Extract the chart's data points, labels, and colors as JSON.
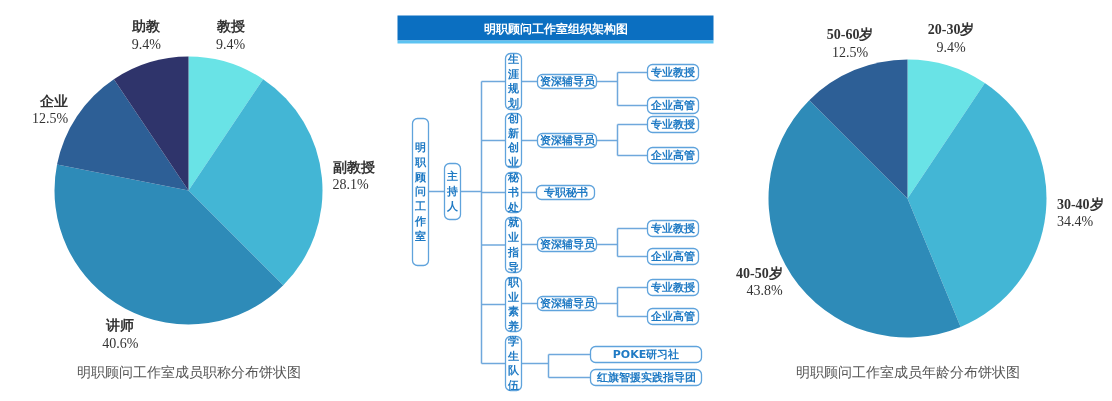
{
  "chart_data": [
    {
      "type": "pie",
      "title": "明职顾问工作室成员职称分布饼状图",
      "categories": [
        "教授",
        "副教授",
        "讲师",
        "企业",
        "助教"
      ],
      "values": [
        9.4,
        28.1,
        40.6,
        12.5,
        9.4
      ],
      "value_labels": [
        "9.4%",
        "28.1%",
        "40.6%",
        "12.5%",
        "9.4%"
      ],
      "colors": [
        "#69e3e6",
        "#43b6d5",
        "#2e8bb8",
        "#2d5f96",
        "#2f346b"
      ]
    },
    {
      "type": "other",
      "title": "明职顾问工作室组织架构图",
      "annotations": [
        "明职顾问工作室",
        "主持人",
        "生涯规划",
        "资深辅导员",
        "专业教授",
        "企业高管",
        "创新创业",
        "资深辅导员",
        "专业教授",
        "企业高管",
        "秘书处",
        "专职秘书",
        "就业指导",
        "资深辅导员",
        "专业教授",
        "企业高管",
        "职业素养",
        "资深辅导员",
        "专业教授",
        "企业高管",
        "学生队伍",
        "POKE研习社",
        "红旗智援实践指导团"
      ]
    },
    {
      "type": "pie",
      "title": "明职顾问工作室成员年龄分布饼状图",
      "categories": [
        "20-30岁",
        "30-40岁",
        "40-50岁",
        "50-60岁"
      ],
      "values": [
        9.4,
        34.4,
        43.8,
        12.5
      ],
      "value_labels": [
        "9.4%",
        "34.4%",
        "43.8%",
        "12.5%"
      ],
      "colors": [
        "#69e3e6",
        "#43b6d5",
        "#2e8bb8",
        "#2d5f96"
      ]
    }
  ]
}
